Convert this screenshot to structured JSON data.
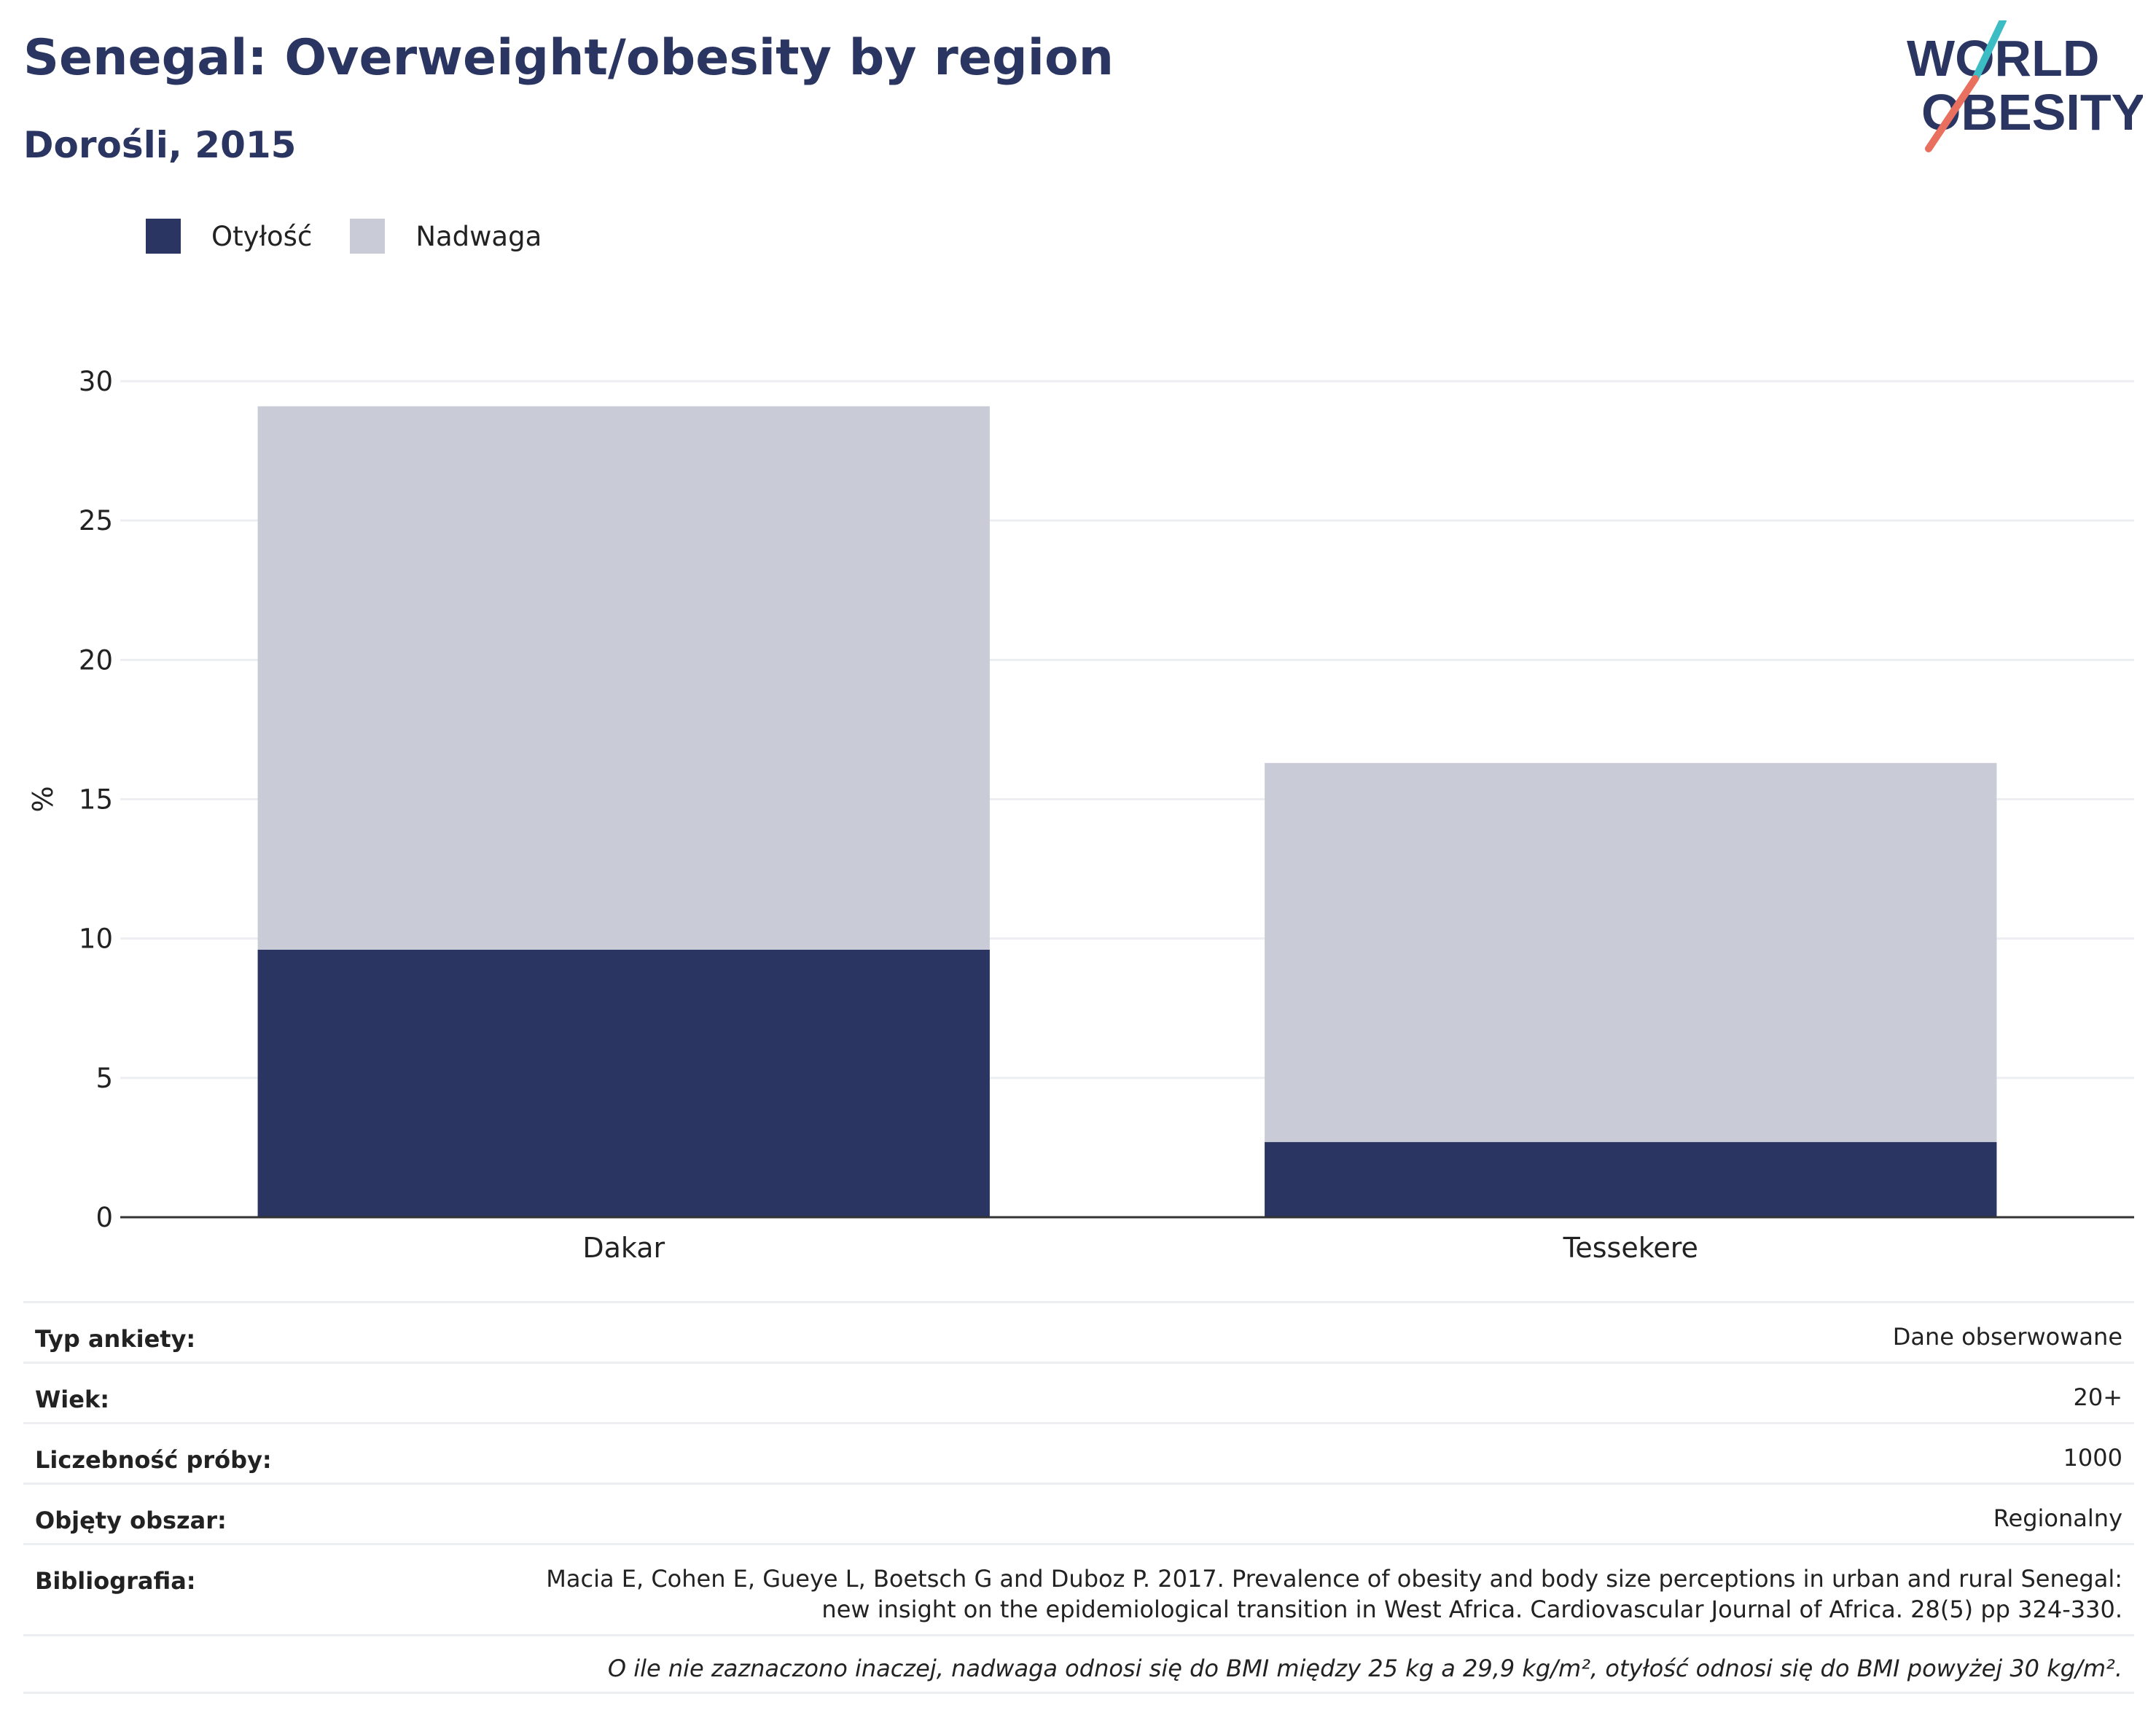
{
  "header": {
    "title": "Senegal: Overweight/obesity by region",
    "subtitle": "Dorośli, 2015"
  },
  "logo": {
    "text_line1": "WORLD",
    "text_line2": "OBESITY",
    "colors": {
      "text": "#2a3561",
      "slash_top": "#3cbcc3",
      "slash_bottom": "#e96f5e"
    }
  },
  "colors": {
    "obesity": "#2a3561",
    "overweight": "#c9ccd7",
    "grid": "#eceef2",
    "axis": "#333333",
    "title": "#2a3561"
  },
  "chart_data": {
    "type": "bar",
    "stacked": true,
    "categories": [
      "Dakar",
      "Tessekere"
    ],
    "series": [
      {
        "name": "Otyłość",
        "values": [
          9.6,
          2.7
        ]
      },
      {
        "name": "Nadwaga",
        "values": [
          19.5,
          13.6
        ]
      }
    ],
    "ylabel": "%",
    "xlabel": "",
    "ylim": [
      0,
      30
    ],
    "yticks": [
      0,
      5,
      10,
      15,
      20,
      25,
      30
    ],
    "grid": true,
    "legend_position": "top-left"
  },
  "info": {
    "rows": [
      {
        "key": "Typ ankiety:",
        "value": [
          "Dane obserwowane"
        ]
      },
      {
        "key": "Wiek:",
        "value": [
          "20+"
        ]
      },
      {
        "key": "Liczebność próby:",
        "value": [
          "1000"
        ]
      },
      {
        "key": "Objęty obszar:",
        "value": [
          "Regionalny"
        ]
      },
      {
        "key": "Bibliografia:",
        "value": [
          "Macia E, Cohen E, Gueye L, Boetsch G and Duboz P. 2017. Prevalence of obesity and body size perceptions in urban and rural Senegal:",
          "new insight on the epidemiological transition in West Africa. Cardiovascular Journal of Africa. 28(5) pp 324-330."
        ]
      }
    ],
    "note": "O ile nie zaznaczono inaczej, nadwaga odnosi się do BMI między 25 kg a 29,9 kg/m², otyłość odnosi się do BMI powyżej 30 kg/m²."
  }
}
